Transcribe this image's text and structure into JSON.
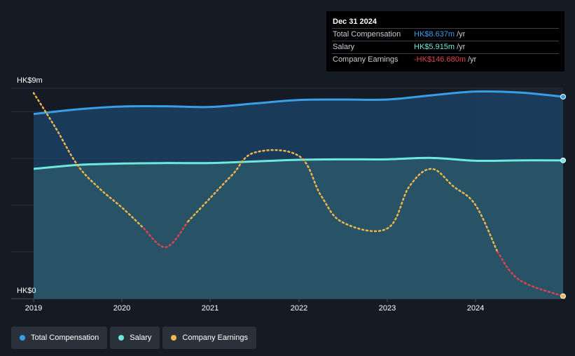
{
  "chart_data": {
    "type": "line",
    "x_labels": [
      "2019",
      "2020",
      "2021",
      "2022",
      "2023",
      "2024"
    ],
    "x_range": [
      2019.0,
      2025.0
    ],
    "y_range": [
      0,
      9
    ],
    "y_tick_labels": {
      "max": "HK$9m",
      "min": "HK$0"
    },
    "series": [
      {
        "name": "Total Compensation",
        "color": "#3a9ee6",
        "style": "solid",
        "points": [
          [
            2019.0,
            7.9
          ],
          [
            2019.5,
            8.1
          ],
          [
            2020.0,
            8.22
          ],
          [
            2020.5,
            8.23
          ],
          [
            2021.0,
            8.2
          ],
          [
            2021.5,
            8.35
          ],
          [
            2022.0,
            8.5
          ],
          [
            2022.5,
            8.52
          ],
          [
            2023.0,
            8.52
          ],
          [
            2023.5,
            8.7
          ],
          [
            2024.0,
            8.86
          ],
          [
            2024.5,
            8.82
          ],
          [
            2025.0,
            8.64
          ]
        ]
      },
      {
        "name": "Salary",
        "color": "#6ee8dc",
        "style": "solid",
        "points": [
          [
            2019.0,
            5.55
          ],
          [
            2019.5,
            5.72
          ],
          [
            2020.0,
            5.78
          ],
          [
            2020.5,
            5.8
          ],
          [
            2021.0,
            5.8
          ],
          [
            2021.5,
            5.87
          ],
          [
            2022.0,
            5.94
          ],
          [
            2022.5,
            5.96
          ],
          [
            2023.0,
            5.96
          ],
          [
            2023.5,
            6.02
          ],
          [
            2024.0,
            5.9
          ],
          [
            2024.5,
            5.915
          ],
          [
            2025.0,
            5.915
          ]
        ]
      },
      {
        "name": "Company Earnings",
        "color": "#f0b84e",
        "negative_color": "#e0434b",
        "style": "dotted",
        "points": [
          [
            2019.0,
            8.8
          ],
          [
            2019.25,
            7.3
          ],
          [
            2019.5,
            5.7
          ],
          [
            2019.75,
            4.7
          ],
          [
            2020.0,
            3.9
          ],
          [
            2020.25,
            3.0
          ],
          [
            2020.5,
            2.2
          ],
          [
            2020.75,
            3.3
          ],
          [
            2021.0,
            4.3
          ],
          [
            2021.25,
            5.3
          ],
          [
            2021.5,
            6.25
          ],
          [
            2022.0,
            6.1
          ],
          [
            2022.25,
            4.4
          ],
          [
            2022.5,
            3.25
          ],
          [
            2023.0,
            3.0
          ],
          [
            2023.25,
            4.8
          ],
          [
            2023.5,
            5.55
          ],
          [
            2023.75,
            4.8
          ],
          [
            2024.0,
            4.0
          ],
          [
            2024.25,
            2.0
          ],
          [
            2024.5,
            0.8
          ],
          [
            2025.0,
            0.1
          ]
        ]
      }
    ],
    "tooltip": {
      "date": "Dec 31 2024",
      "rows": [
        {
          "label": "Total Compensation",
          "value": "HK$8.637m",
          "unit": "/yr",
          "color": "#3a9ee6"
        },
        {
          "label": "Salary",
          "value": "HK$5.915m",
          "unit": "/yr",
          "color": "#6ee8dc"
        },
        {
          "label": "Company Earnings",
          "value": "-HK$146.680m",
          "unit": "/yr",
          "color": "#e0434b"
        }
      ]
    },
    "legend": [
      {
        "label": "Total Compensation",
        "color": "#3a9ee6"
      },
      {
        "label": "Salary",
        "color": "#6ee8dc"
      },
      {
        "label": "Company Earnings",
        "color": "#f0b84e"
      }
    ]
  }
}
